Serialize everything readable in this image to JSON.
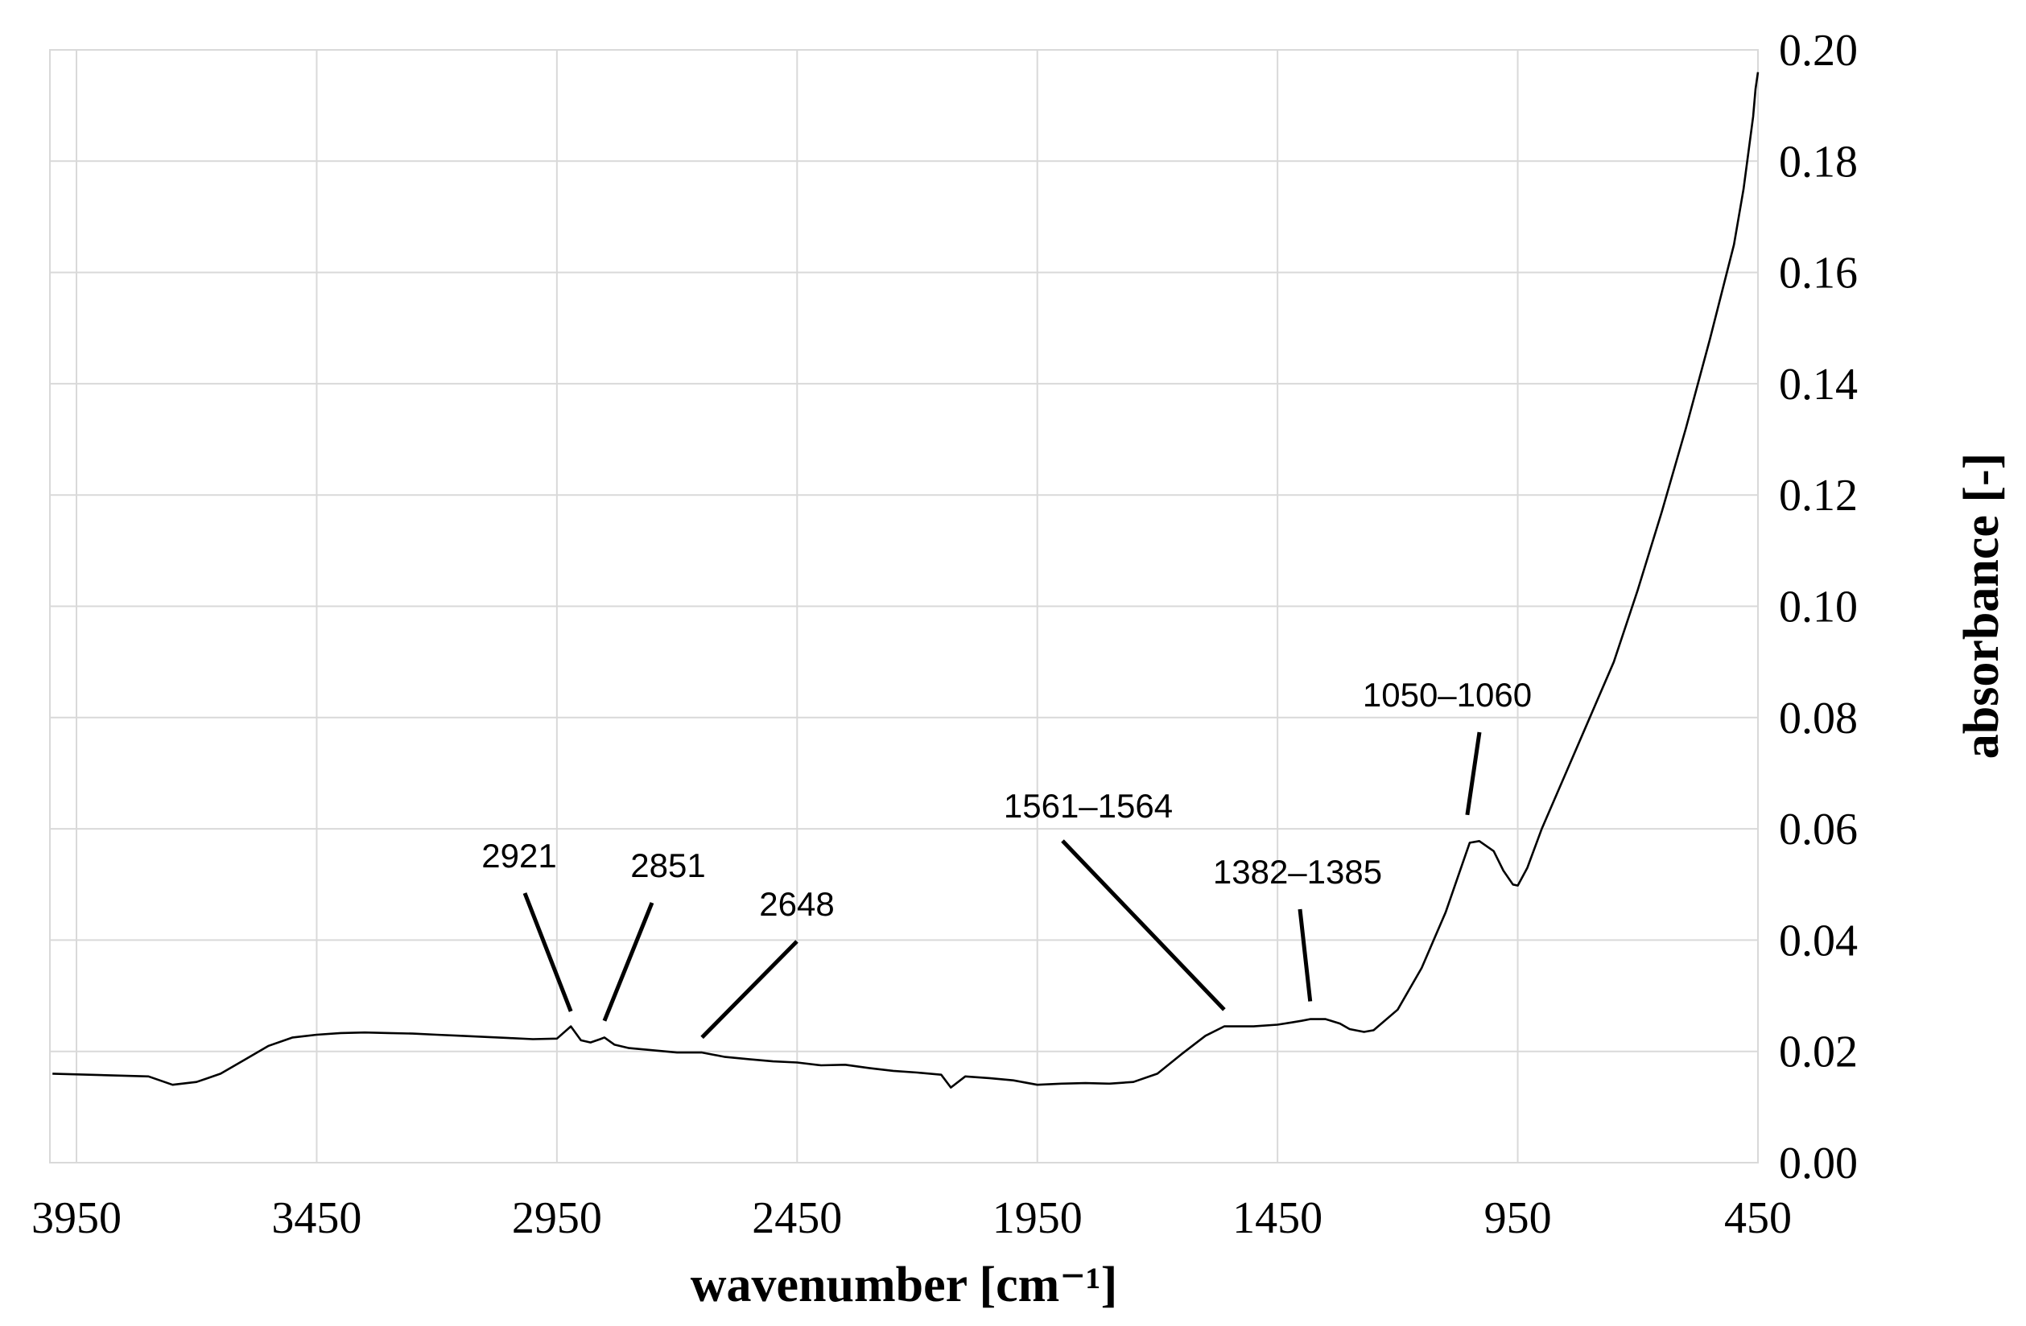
{
  "chart_data": {
    "type": "line",
    "title": "",
    "xlabel": "wavenumber [cm⁻¹]",
    "ylabel": "absorbance [-]",
    "xlim": [
      3950,
      450
    ],
    "x_reversed": true,
    "ylim": [
      0,
      0.2
    ],
    "y_axis_position": "right",
    "grid": true,
    "legend": "none",
    "x_ticks": [
      "3950",
      "3450",
      "2950",
      "2450",
      "1950",
      "1450",
      "950",
      "450"
    ],
    "y_ticks": [
      "0.00",
      "0.02",
      "0.04",
      "0.06",
      "0.08",
      "0.10",
      "0.12",
      "0.14",
      "0.16",
      "0.18",
      "0.20"
    ],
    "series": [
      {
        "color": "#000000",
        "x": [
          4000,
          3800,
          3750,
          3700,
          3650,
          3600,
          3550,
          3500,
          3450,
          3400,
          3350,
          3300,
          3250,
          3200,
          3150,
          3100,
          3050,
          3000,
          2950,
          2921,
          2900,
          2880,
          2860,
          2851,
          2830,
          2800,
          2750,
          2700,
          2648,
          2600,
          2550,
          2500,
          2450,
          2400,
          2350,
          2300,
          2250,
          2200,
          2150,
          2130,
          2100,
          2050,
          2000,
          1950,
          1900,
          1850,
          1800,
          1750,
          1700,
          1650,
          1600,
          1561,
          1500,
          1450,
          1420,
          1400,
          1382,
          1350,
          1320,
          1300,
          1270,
          1250,
          1200,
          1150,
          1100,
          1060,
          1050,
          1030,
          1000,
          980,
          960,
          950,
          930,
          900,
          850,
          800,
          750,
          700,
          650,
          600,
          550,
          500,
          480,
          460,
          455,
          450
        ],
        "y": [
          0.016,
          0.0155,
          0.014,
          0.0145,
          0.016,
          0.0185,
          0.021,
          0.0225,
          0.023,
          0.0233,
          0.0234,
          0.0233,
          0.0232,
          0.023,
          0.0228,
          0.0226,
          0.0224,
          0.0222,
          0.0223,
          0.0245,
          0.022,
          0.0216,
          0.0222,
          0.0225,
          0.0212,
          0.0206,
          0.0202,
          0.0198,
          0.0198,
          0.019,
          0.0186,
          0.0182,
          0.018,
          0.0175,
          0.0176,
          0.017,
          0.0165,
          0.0162,
          0.0158,
          0.0135,
          0.0155,
          0.0152,
          0.0148,
          0.014,
          0.0142,
          0.0143,
          0.0142,
          0.0145,
          0.016,
          0.0195,
          0.0228,
          0.0245,
          0.0245,
          0.0248,
          0.0252,
          0.0255,
          0.0258,
          0.0258,
          0.025,
          0.024,
          0.0235,
          0.0238,
          0.0275,
          0.035,
          0.045,
          0.055,
          0.0575,
          0.0578,
          0.056,
          0.0525,
          0.05,
          0.0498,
          0.053,
          0.06,
          0.07,
          0.08,
          0.09,
          0.103,
          0.117,
          0.132,
          0.148,
          0.165,
          0.175,
          0.188,
          0.193,
          0.196
        ]
      }
    ],
    "annotations": [
      {
        "text": "2921",
        "x": 2921,
        "y": 0.0272
      },
      {
        "text": "2851",
        "x": 2851,
        "y": 0.0255
      },
      {
        "text": "2648",
        "x": 2648,
        "y": 0.0225
      },
      {
        "text": "1561–1564",
        "x": 1561,
        "y": 0.0275
      },
      {
        "text": "1382–1385",
        "x": 1382,
        "y": 0.029
      },
      {
        "text": "1050–1060",
        "x": 1055,
        "y": 0.0625
      }
    ]
  }
}
